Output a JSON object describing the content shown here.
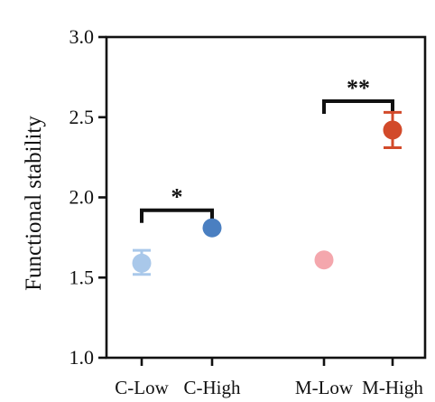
{
  "chart_data": {
    "type": "scatter",
    "title": "",
    "xlabel": "",
    "ylabel": "Functional stability",
    "ylim": [
      1.0,
      3.0
    ],
    "yticks": [
      "1.0",
      "1.5",
      "2.0",
      "2.5",
      "3.0"
    ],
    "categories": [
      "C-Low",
      "C-High",
      "M-Low",
      "M-High"
    ],
    "points": [
      {
        "category": "C-Low",
        "value": 1.59,
        "error_low": 1.52,
        "error_high": 1.67,
        "color": "#a9c8ea"
      },
      {
        "category": "C-High",
        "value": 1.81,
        "error_low": 1.8,
        "error_high": 1.82,
        "color": "#4a7fc1"
      },
      {
        "category": "M-Low",
        "value": 1.61,
        "error_low": 1.61,
        "error_high": 1.61,
        "color": "#f4a7ad"
      },
      {
        "category": "M-High",
        "value": 2.42,
        "error_low": 2.31,
        "error_high": 2.53,
        "color": "#d24a2a"
      }
    ],
    "significance": [
      {
        "from": "C-Low",
        "to": "C-High",
        "label": "*",
        "level": 1.92
      },
      {
        "from": "M-Low",
        "to": "M-High",
        "label": "**",
        "level": 2.6
      }
    ],
    "grid": false,
    "legend": "none"
  }
}
